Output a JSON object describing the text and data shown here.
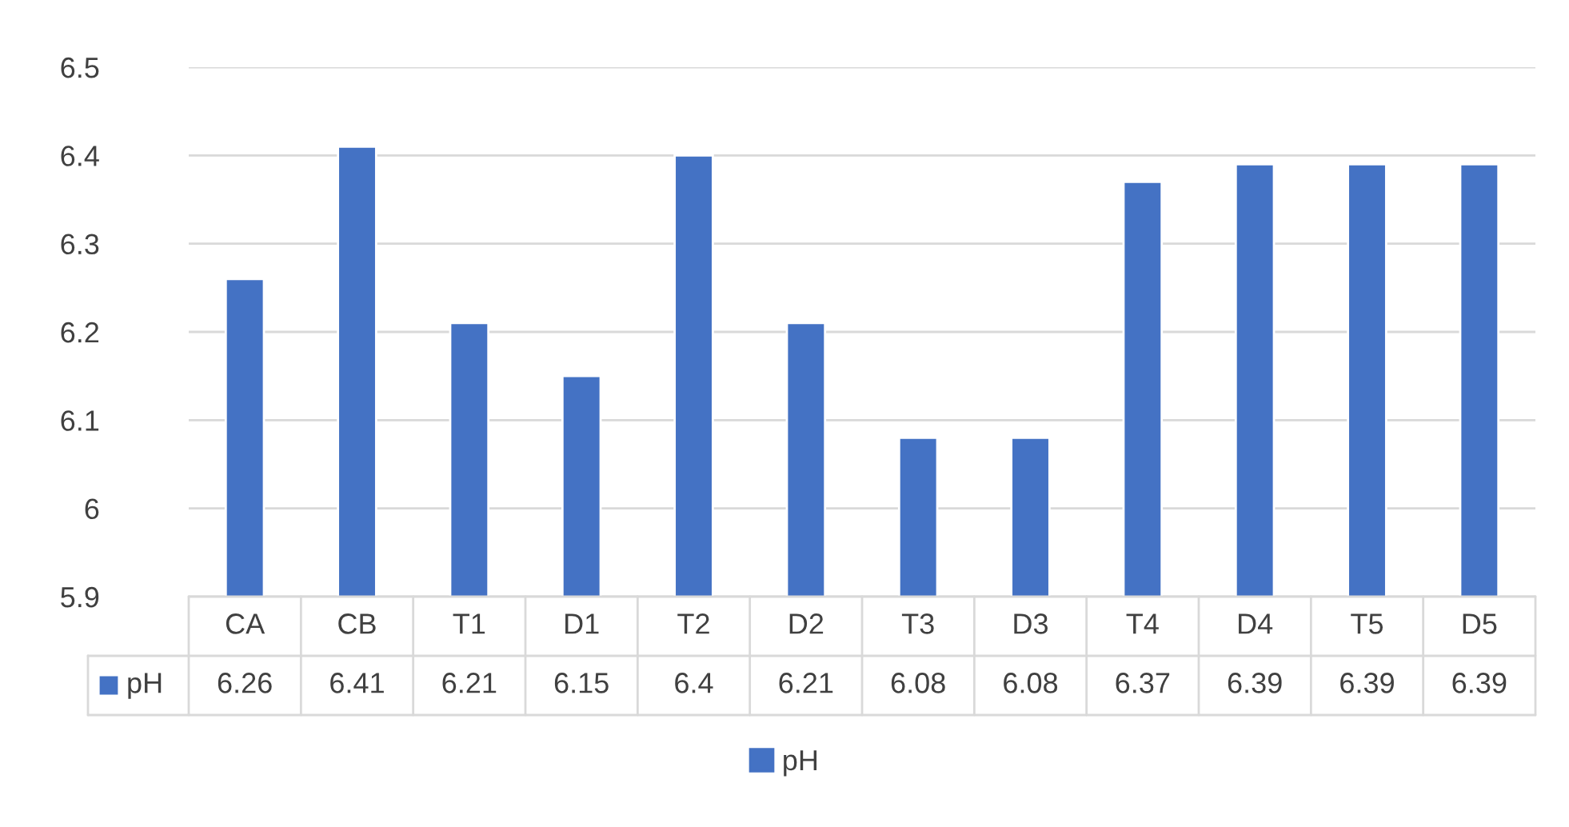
{
  "chart_data": {
    "type": "bar",
    "categories": [
      "CA",
      "CB",
      "T1",
      "D1",
      "T2",
      "D2",
      "T3",
      "D3",
      "T4",
      "D4",
      "T5",
      "D5"
    ],
    "series": [
      {
        "name": "pH",
        "color": "#4472c4",
        "values": [
          6.26,
          6.41,
          6.21,
          6.15,
          6.4,
          6.21,
          6.08,
          6.08,
          6.37,
          6.39,
          6.39,
          6.39
        ]
      }
    ],
    "ylim": [
      5.9,
      6.5
    ],
    "yticks": [
      5.9,
      6,
      6.1,
      6.2,
      6.3,
      6.4,
      6.5
    ],
    "grid": "y",
    "legend": "bottom",
    "data_labels": true
  }
}
